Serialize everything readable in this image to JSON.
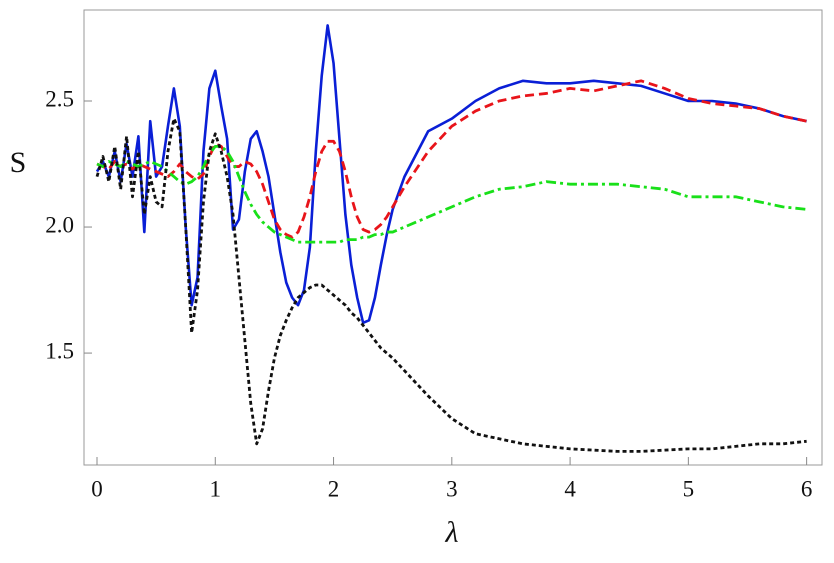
{
  "chart_data": {
    "type": "line",
    "xlabel": "λ",
    "ylabel": "S",
    "xlim": [
      -0.11,
      6.13
    ],
    "ylim": [
      1.056,
      2.861
    ],
    "xticks": [
      0,
      1,
      2,
      3,
      4,
      5,
      6
    ],
    "yticks": [
      1.5,
      {
        "value": 2,
        "label": "2.0"
      },
      2.5
    ],
    "grid": false,
    "x": [
      0,
      0.05,
      0.1,
      0.15,
      0.2,
      0.25,
      0.3,
      0.35,
      0.4,
      0.45,
      0.5,
      0.55,
      0.6,
      0.65,
      0.7,
      0.75,
      0.8,
      0.85,
      0.9,
      0.95,
      1.0,
      1.05,
      1.1,
      1.15,
      1.2,
      1.25,
      1.3,
      1.35,
      1.4,
      1.45,
      1.5,
      1.55,
      1.6,
      1.65,
      1.7,
      1.75,
      1.8,
      1.85,
      1.9,
      1.95,
      2.0,
      2.05,
      2.1,
      2.15,
      2.2,
      2.25,
      2.3,
      2.35,
      2.4,
      2.45,
      2.5,
      2.6,
      2.8,
      3.0,
      3.2,
      3.4,
      3.6,
      3.8,
      4.0,
      4.2,
      4.4,
      4.6,
      4.8,
      5.0,
      5.2,
      5.4,
      5.6,
      5.8,
      6.0
    ],
    "series": [
      {
        "color": "#0a1fd6",
        "dash": "solid",
        "values": [
          2.22,
          2.26,
          2.2,
          2.3,
          2.18,
          2.33,
          2.2,
          2.36,
          1.98,
          2.42,
          2.2,
          2.24,
          2.4,
          2.55,
          2.4,
          2.0,
          1.69,
          1.8,
          2.3,
          2.55,
          2.62,
          2.48,
          2.35,
          1.99,
          2.03,
          2.22,
          2.35,
          2.38,
          2.3,
          2.2,
          2.05,
          1.9,
          1.78,
          1.72,
          1.69,
          1.75,
          1.92,
          2.3,
          2.6,
          2.8,
          2.65,
          2.35,
          2.05,
          1.85,
          1.72,
          1.62,
          1.63,
          1.72,
          1.85,
          1.97,
          2.07,
          2.2,
          2.38,
          2.43,
          2.5,
          2.55,
          2.58,
          2.57,
          2.57,
          2.58,
          2.57,
          2.56,
          2.53,
          2.5,
          2.5,
          2.49,
          2.47,
          2.44,
          2.42
        ]
      },
      {
        "color": "#e8141a",
        "dash": "dashed",
        "values": [
          2.25,
          2.24,
          2.23,
          2.26,
          2.24,
          2.25,
          2.23,
          2.25,
          2.24,
          2.23,
          2.22,
          2.21,
          2.2,
          2.22,
          2.25,
          2.22,
          2.2,
          2.19,
          2.21,
          2.28,
          2.33,
          2.32,
          2.28,
          2.24,
          2.24,
          2.26,
          2.25,
          2.22,
          2.17,
          2.1,
          2.03,
          1.99,
          1.97,
          1.96,
          1.98,
          2.04,
          2.12,
          2.22,
          2.3,
          2.34,
          2.34,
          2.3,
          2.22,
          2.12,
          2.04,
          1.99,
          1.98,
          1.99,
          2.01,
          2.04,
          2.08,
          2.16,
          2.3,
          2.4,
          2.46,
          2.5,
          2.52,
          2.53,
          2.55,
          2.54,
          2.56,
          2.58,
          2.55,
          2.51,
          2.49,
          2.48,
          2.47,
          2.44,
          2.42
        ]
      },
      {
        "color": "#19e019",
        "dash": "dashdot",
        "values": [
          2.25,
          2.24,
          2.26,
          2.25,
          2.24,
          2.26,
          2.25,
          2.24,
          2.25,
          2.26,
          2.25,
          2.24,
          2.22,
          2.2,
          2.18,
          2.17,
          2.18,
          2.2,
          2.24,
          2.29,
          2.32,
          2.32,
          2.3,
          2.26,
          2.2,
          2.14,
          2.09,
          2.05,
          2.02,
          2.0,
          1.98,
          1.97,
          1.96,
          1.95,
          1.94,
          1.94,
          1.94,
          1.94,
          1.94,
          1.94,
          1.94,
          1.94,
          1.95,
          1.95,
          1.95,
          1.96,
          1.96,
          1.97,
          1.97,
          1.98,
          1.98,
          2.0,
          2.04,
          2.08,
          2.12,
          2.15,
          2.16,
          2.18,
          2.17,
          2.17,
          2.17,
          2.16,
          2.15,
          2.12,
          2.12,
          2.12,
          2.1,
          2.08,
          2.07
        ]
      },
      {
        "color": "#111111",
        "dash": "dotted",
        "values": [
          2.2,
          2.28,
          2.18,
          2.32,
          2.15,
          2.36,
          2.12,
          2.3,
          2.05,
          2.2,
          2.1,
          2.08,
          2.3,
          2.43,
          2.38,
          2.0,
          1.58,
          1.75,
          2.1,
          2.3,
          2.37,
          2.3,
          2.2,
          2.05,
          1.8,
          1.55,
          1.3,
          1.14,
          1.2,
          1.35,
          1.48,
          1.57,
          1.63,
          1.68,
          1.72,
          1.74,
          1.76,
          1.77,
          1.77,
          1.75,
          1.73,
          1.71,
          1.69,
          1.66,
          1.64,
          1.61,
          1.58,
          1.55,
          1.52,
          1.5,
          1.48,
          1.43,
          1.33,
          1.24,
          1.18,
          1.16,
          1.14,
          1.13,
          1.12,
          1.115,
          1.11,
          1.11,
          1.115,
          1.12,
          1.12,
          1.13,
          1.14,
          1.14,
          1.15
        ]
      }
    ]
  }
}
